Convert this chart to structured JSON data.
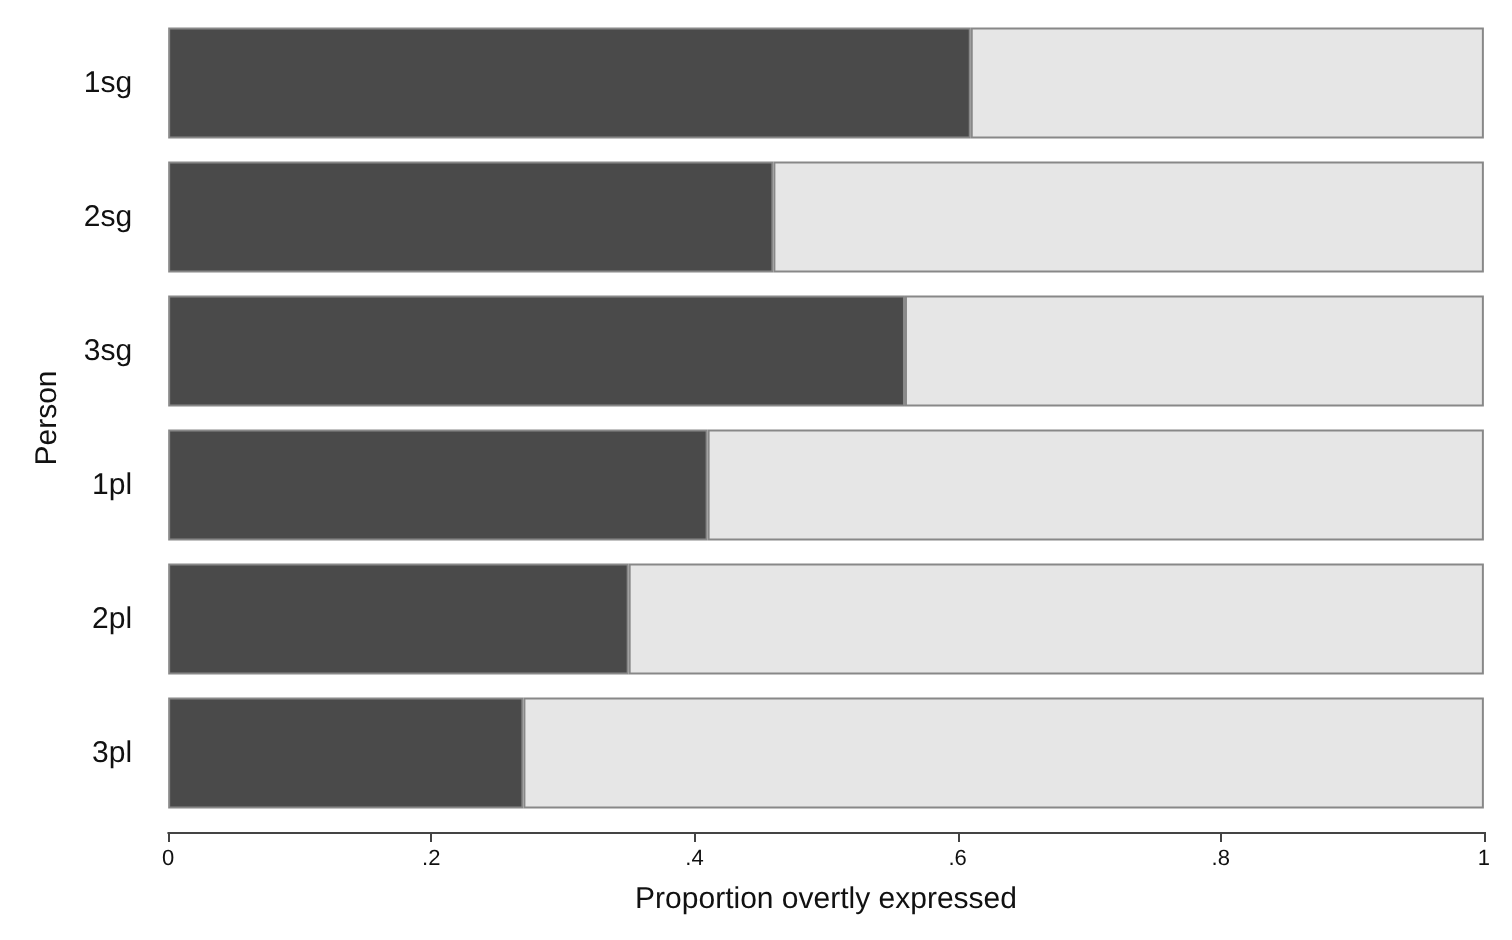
{
  "chart_data": {
    "type": "bar",
    "orientation": "horizontal",
    "stacked": true,
    "xlabel": "Proportion overtly expressed",
    "ylabel": "Person",
    "categories": [
      "1sg",
      "2sg",
      "3sg",
      "1pl",
      "2pl",
      "3pl"
    ],
    "series": [
      {
        "color": "#4a4a4a",
        "values": [
          0.61,
          0.46,
          0.56,
          0.41,
          0.35,
          0.27
        ]
      },
      {
        "color": "#e6e6e6",
        "values": [
          0.39,
          0.54,
          0.44,
          0.59,
          0.65,
          0.73
        ]
      }
    ],
    "xlim": [
      0,
      1
    ],
    "xticks": [
      0,
      {
        "value": 0.2,
        "label": ".2"
      },
      {
        "value": 0.4,
        "label": ".4"
      },
      {
        "value": 0.6,
        "label": ".6"
      },
      {
        "value": 0.8,
        "label": ".8"
      },
      1
    ]
  }
}
